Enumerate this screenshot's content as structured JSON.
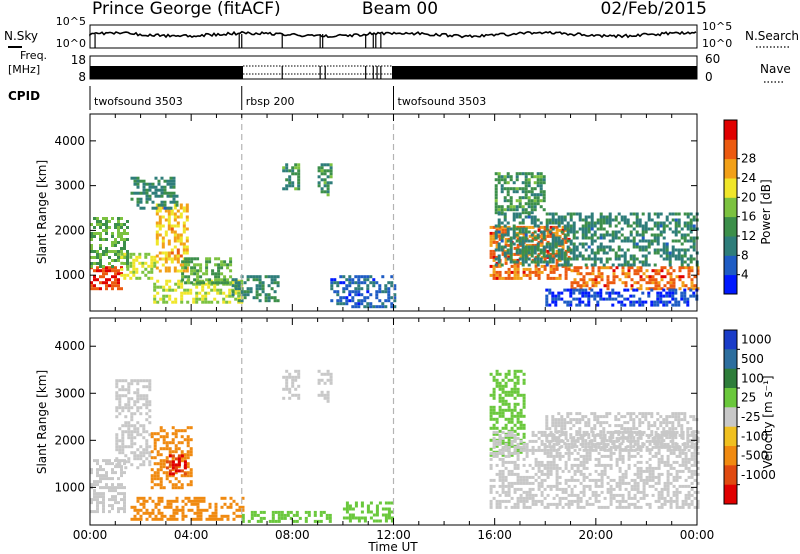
{
  "header": {
    "title": "Prince George (fitACF)",
    "beam": "Beam 00",
    "date": "02/Feb/2015"
  },
  "side_labels": {
    "nsky": "N.Sky",
    "freq_line1": "Freq.",
    "freq_line2": "[MHz]",
    "cpid": "CPID",
    "nsearch": "N.Search",
    "nave": "Nave"
  },
  "noise_panel": {
    "left_ticks": [
      "10^5",
      "10^0"
    ],
    "right_ticks": [
      "10^5",
      "10^0"
    ]
  },
  "freq_panel": {
    "left_ticks": [
      "18",
      "8"
    ],
    "right_ticks": [
      "60",
      "0"
    ]
  },
  "cpid_segments": [
    {
      "label": "twofsound 3503",
      "start_hour": 0,
      "end_hour": 6
    },
    {
      "label": "rbsp 200",
      "start_hour": 6,
      "end_hour": 12
    },
    {
      "label": "twofsound 3503",
      "start_hour": 12,
      "end_hour": 24
    }
  ],
  "chart_data": [
    {
      "type": "heatmap",
      "panel": "power",
      "ylabel": "Slant Range [km]",
      "xlim": [
        0,
        24
      ],
      "ylim": [
        200,
        4600
      ],
      "yticks": [
        1000,
        2000,
        3000,
        4000
      ],
      "colorbar": {
        "label": "Power [dB]",
        "range": [
          0,
          32
        ],
        "ticks": [
          "4",
          "8",
          "12",
          "16",
          "20",
          "24",
          "28"
        ],
        "colors": [
          "#0019ff",
          "#1e5cc4",
          "#2e7d7a",
          "#3c8f4a",
          "#7cc240",
          "#f0e62a",
          "#f2a018",
          "#ec5a10",
          "#e00000"
        ]
      },
      "regions": [
        {
          "t0": 0.0,
          "t1": 1.2,
          "r0": 700,
          "r1": 1200,
          "level": 28
        },
        {
          "t0": 0.0,
          "t1": 1.5,
          "r0": 1200,
          "r1": 2300,
          "level": 14
        },
        {
          "t0": 1.2,
          "t1": 2.6,
          "r0": 900,
          "r1": 1500,
          "level": 18
        },
        {
          "t0": 2.6,
          "t1": 3.8,
          "r0": 1100,
          "r1": 2600,
          "level": 22
        },
        {
          "t0": 1.6,
          "t1": 3.4,
          "r0": 2500,
          "r1": 3200,
          "level": 10
        },
        {
          "t0": 2.5,
          "t1": 6.0,
          "r0": 400,
          "r1": 900,
          "level": 18
        },
        {
          "t0": 3.6,
          "t1": 5.6,
          "r0": 800,
          "r1": 1400,
          "level": 14
        },
        {
          "t0": 5.6,
          "t1": 7.4,
          "r0": 400,
          "r1": 1000,
          "level": 10
        },
        {
          "t0": 7.6,
          "t1": 8.2,
          "r0": 2900,
          "r1": 3500,
          "level": 12
        },
        {
          "t0": 9.0,
          "t1": 9.5,
          "r0": 2800,
          "r1": 3500,
          "level": 12
        },
        {
          "t0": 9.5,
          "t1": 12.0,
          "r0": 300,
          "r1": 1000,
          "level": 6
        },
        {
          "t0": 15.8,
          "t1": 19.0,
          "r0": 900,
          "r1": 2100,
          "level": 26
        },
        {
          "t0": 19.0,
          "t1": 24.0,
          "r0": 700,
          "r1": 1200,
          "level": 26
        },
        {
          "t0": 16.0,
          "t1": 24.0,
          "r0": 1200,
          "r1": 2400,
          "level": 10
        },
        {
          "t0": 16.0,
          "t1": 18.0,
          "r0": 2400,
          "r1": 3300,
          "level": 12
        },
        {
          "t0": 18.0,
          "t1": 24.0,
          "r0": 300,
          "r1": 700,
          "level": 4
        }
      ]
    },
    {
      "type": "heatmap",
      "panel": "velocity",
      "xlabel": "Time UT",
      "ylabel": "Slant Range [km]",
      "xlim": [
        0,
        24
      ],
      "ylim": [
        200,
        4600
      ],
      "xticks": [
        "00:00",
        "04:00",
        "08:00",
        "12:00",
        "16:00",
        "20:00",
        "00:00"
      ],
      "yticks": [
        1000,
        2000,
        3000,
        4000
      ],
      "colorbar": {
        "label": "Velocity [m s⁻¹]",
        "ticks": [
          "1000",
          "500",
          "100",
          "25",
          "-25",
          "-100",
          "-500",
          "-1000"
        ],
        "colors": [
          "#1a3cc8",
          "#2d6e9e",
          "#2e7d3a",
          "#6ac83c",
          "#c8c8c8",
          "#f0c020",
          "#f08a10",
          "#e04a10",
          "#e00000"
        ]
      },
      "regions": [
        {
          "t0": 0.0,
          "t1": 1.4,
          "r0": 500,
          "r1": 1600,
          "level": 0
        },
        {
          "t0": 1.0,
          "t1": 2.4,
          "r0": 1400,
          "r1": 3300,
          "level": 0
        },
        {
          "t0": 2.4,
          "t1": 4.0,
          "r0": 1000,
          "r1": 2300,
          "level": -150
        },
        {
          "t0": 3.0,
          "t1": 3.8,
          "r0": 1300,
          "r1": 1700,
          "level": -1000
        },
        {
          "t0": 1.6,
          "t1": 6.0,
          "r0": 300,
          "r1": 800,
          "level": -200
        },
        {
          "t0": 6.0,
          "t1": 9.5,
          "r0": 250,
          "r1": 500,
          "level": 60
        },
        {
          "t0": 7.6,
          "t1": 8.2,
          "r0": 2900,
          "r1": 3500,
          "level": 0
        },
        {
          "t0": 9.0,
          "t1": 9.5,
          "r0": 2800,
          "r1": 3500,
          "level": 0
        },
        {
          "t0": 10.0,
          "t1": 12.0,
          "r0": 300,
          "r1": 700,
          "level": 60
        },
        {
          "t0": 15.8,
          "t1": 17.2,
          "r0": 1700,
          "r1": 3500,
          "level": 60
        },
        {
          "t0": 15.8,
          "t1": 24.0,
          "r0": 600,
          "r1": 2200,
          "level": 0
        },
        {
          "t0": 18.0,
          "t1": 24.0,
          "r0": 1800,
          "r1": 2600,
          "level": 0
        }
      ]
    }
  ],
  "colors": {
    "axis": "#000000",
    "dashed_divider": "#b4b4b4"
  }
}
